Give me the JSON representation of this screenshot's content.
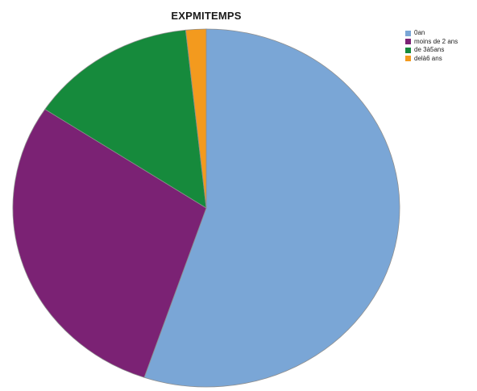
{
  "chart_data": {
    "type": "pie",
    "title": "EXPMITEMPS",
    "legend_position": "top-right",
    "categories": [
      "0an",
      "moins de 2 ans",
      "de 3à5ans",
      "delà6 ans"
    ],
    "values": [
      55.2,
      29.1,
      14.0,
      1.7
    ],
    "colors": [
      "#7aa6d6",
      "#7b2274",
      "#168a3c",
      "#f39a1e"
    ]
  }
}
